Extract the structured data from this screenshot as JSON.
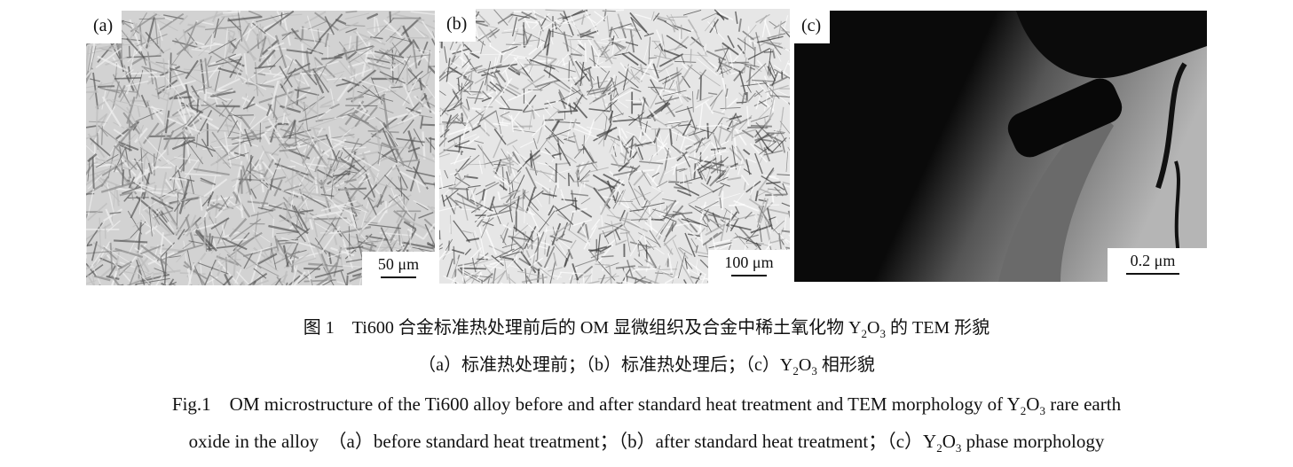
{
  "panels": [
    {
      "label": "(a)",
      "scale": "50 μm",
      "texture": "light-gray lath microstructure"
    },
    {
      "label": "(b)",
      "scale": "100 μm",
      "texture": "white grain with dark laths"
    },
    {
      "label": "(c)",
      "scale": "0.2 μm",
      "texture": "dark TEM field with Y2O3 rod particle"
    }
  ],
  "caption_cn": {
    "line1_a": "图 1　Ti600 合金标准热处理前后的 OM 显微组织及合金中稀土氧化物 Y",
    "sub2": "2",
    "o": "O",
    "sub3": "3",
    "line1_b": " 的 TEM 形貌",
    "line2_a": "（a）标准热处理前；（b）标准热处理后；（c）Y",
    "line2_b": " 相形貌"
  },
  "caption_en": {
    "line1_a": "Fig.1　OM microstructure of the Ti600 alloy before and after standard heat treatment and TEM morphology of Y",
    "line1_b": " rare earth",
    "line2_a": "oxide in the alloy　（a）before standard heat treatment；（b）after standard heat treatment；（c）Y",
    "line2_b": " phase morphology"
  }
}
